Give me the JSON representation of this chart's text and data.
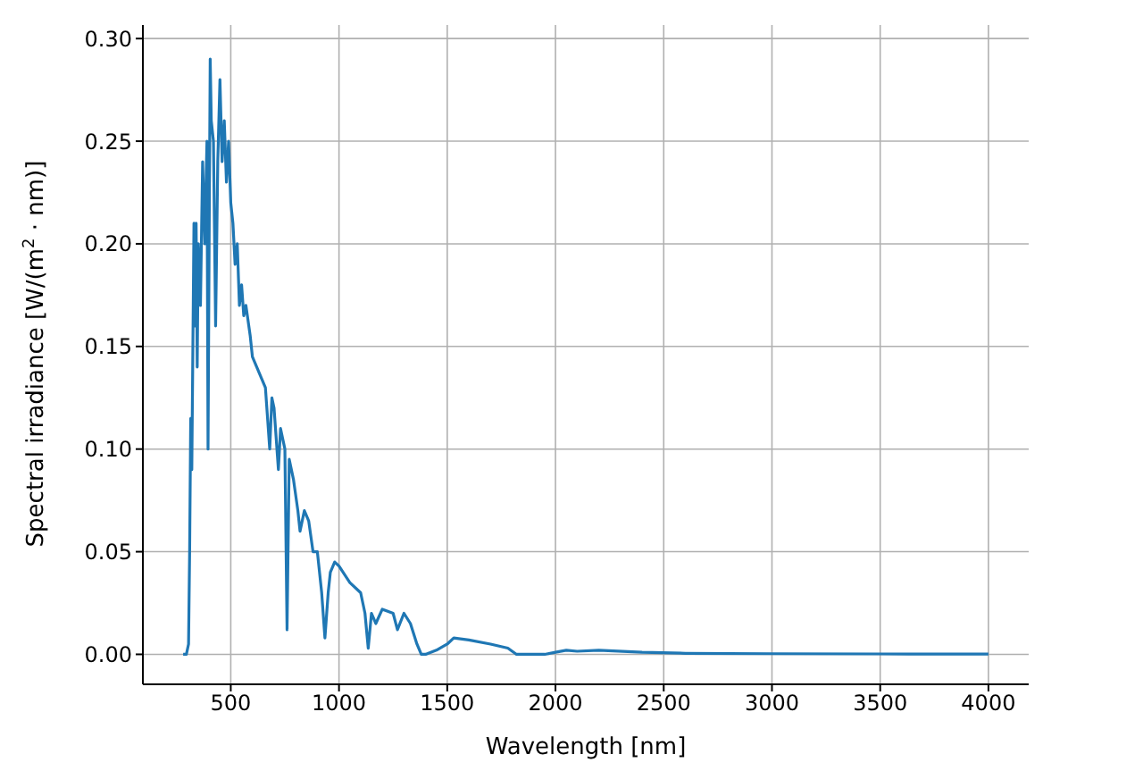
{
  "chart_data": {
    "type": "line",
    "xlabel": "Wavelength [nm]",
    "ylabel": "Spectral irradiance [W/(m$^{2}$ · nm)]",
    "x": [
      280,
      295,
      305,
      310,
      315,
      320,
      330,
      335,
      340,
      345,
      350,
      360,
      370,
      380,
      390,
      395,
      400,
      405,
      410,
      420,
      430,
      440,
      450,
      460,
      470,
      480,
      490,
      500,
      510,
      520,
      530,
      540,
      550,
      560,
      570,
      590,
      600,
      620,
      640,
      660,
      680,
      690,
      700,
      720,
      730,
      750,
      760,
      770,
      790,
      810,
      820,
      840,
      860,
      880,
      900,
      920,
      935,
      950,
      960,
      980,
      1000,
      1050,
      1100,
      1120,
      1135,
      1150,
      1170,
      1200,
      1250,
      1270,
      1300,
      1330,
      1360,
      1380,
      1400,
      1450,
      1500,
      1530,
      1600,
      1700,
      1780,
      1820,
      1900,
      1950,
      2000,
      2050,
      2100,
      2200,
      2400,
      2600,
      3000,
      3500,
      4000
    ],
    "series": [
      {
        "color": "#1f77b4",
        "values": [
          0,
          0,
          0.005,
          0.05,
          0.115,
          0.09,
          0.21,
          0.16,
          0.21,
          0.14,
          0.2,
          0.17,
          0.24,
          0.2,
          0.25,
          0.1,
          0.2,
          0.29,
          0.26,
          0.25,
          0.16,
          0.24,
          0.28,
          0.24,
          0.26,
          0.23,
          0.25,
          0.22,
          0.21,
          0.19,
          0.2,
          0.17,
          0.18,
          0.165,
          0.17,
          0.155,
          0.145,
          0.14,
          0.135,
          0.13,
          0.1,
          0.125,
          0.12,
          0.09,
          0.11,
          0.1,
          0.012,
          0.095,
          0.085,
          0.07,
          0.06,
          0.07,
          0.065,
          0.05,
          0.05,
          0.03,
          0.008,
          0.03,
          0.04,
          0.045,
          0.043,
          0.035,
          0.03,
          0.02,
          0.003,
          0.02,
          0.015,
          0.022,
          0.02,
          0.012,
          0.02,
          0.015,
          0.005,
          0,
          0,
          0.002,
          0.005,
          0.008,
          0.007,
          0.005,
          0.003,
          0,
          0,
          0,
          0.001,
          0.002,
          0.0015,
          0.002,
          0.001,
          0.0005,
          0.0003,
          0.0002,
          0.0001
        ]
      }
    ],
    "xlim": [
      94,
      4186
    ],
    "xticks": [
      500,
      1000,
      1500,
      2000,
      2500,
      3000,
      3500,
      4000
    ],
    "ylim": [
      -0.0146,
      0.3066
    ],
    "yticks": [
      {
        "value": 0,
        "label": "0.00"
      },
      {
        "value": 0.05,
        "label": "0.05"
      },
      {
        "value": 0.1,
        "label": "0.10"
      },
      {
        "value": 0.15,
        "label": "0.15"
      },
      {
        "value": 0.2,
        "label": "0.20"
      },
      {
        "value": 0.25,
        "label": "0.25"
      },
      {
        "value": 0.3,
        "label": "0.30"
      }
    ],
    "grid": true,
    "marker": "none",
    "line_style": "solid"
  }
}
